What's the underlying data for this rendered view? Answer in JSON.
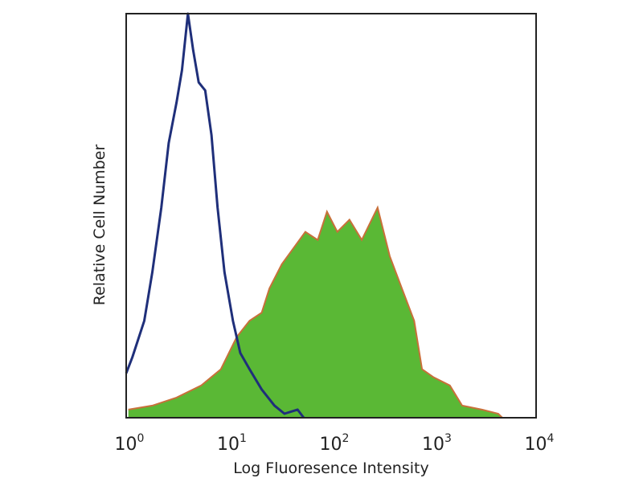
{
  "chart_data": {
    "type": "area",
    "title": "",
    "xlabel": "Log Fluoresence Intensity",
    "ylabel": "Relative Cell Number",
    "xscale": "log",
    "xlim": [
      1,
      10000
    ],
    "ylim": [
      0,
      100
    ],
    "grid": false,
    "legend": "none",
    "x_tick_labels": [
      {
        "base": "10",
        "exp": "0"
      },
      {
        "base": "10",
        "exp": "1"
      },
      {
        "base": "10",
        "exp": "2"
      },
      {
        "base": "10",
        "exp": "3"
      },
      {
        "base": "10",
        "exp": "4"
      }
    ],
    "series": [
      {
        "style": "outline",
        "color": "#1f2f7a",
        "x": [
          1,
          1.15,
          1.5,
          1.8,
          2.2,
          2.6,
          3.1,
          3.5,
          4,
          4.5,
          5.1,
          5.9,
          6.8,
          7.8,
          9.1,
          11,
          13,
          16,
          21,
          28,
          35,
          47,
          54
        ],
        "y": [
          11,
          15,
          24,
          36,
          52,
          68,
          78,
          86,
          100,
          91,
          83,
          81,
          70,
          52,
          36,
          24,
          16,
          12,
          7,
          3,
          1,
          2,
          0
        ]
      },
      {
        "style": "filled",
        "color": "#5ab835",
        "edge_color": "#c8703a",
        "x": [
          1.05,
          1.8,
          3.1,
          5.4,
          8.4,
          12,
          16,
          21,
          25,
          33,
          43,
          56,
          74,
          91,
          115,
          151,
          199,
          284,
          373,
          490,
          646,
          771,
          1000,
          1440,
          1900,
          2960,
          4270,
          4680
        ],
        "y": [
          2,
          3,
          5,
          8,
          12,
          20,
          24,
          26,
          32,
          38,
          42,
          46,
          44,
          51,
          46,
          49,
          44,
          52,
          40,
          32,
          24,
          12,
          10,
          8,
          3,
          2,
          1,
          0
        ]
      }
    ]
  }
}
